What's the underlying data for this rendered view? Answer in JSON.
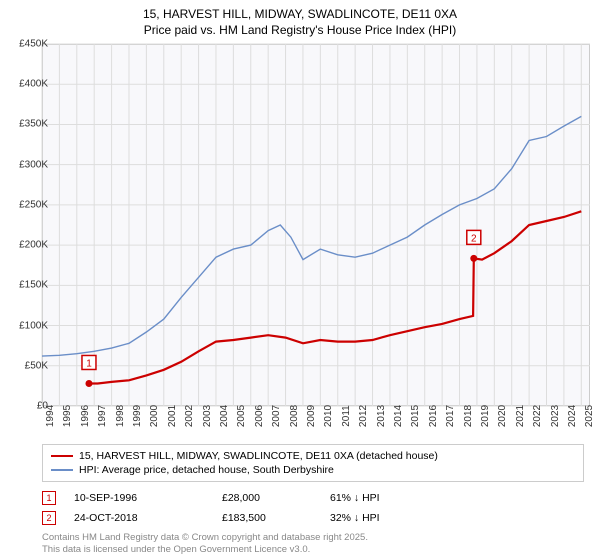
{
  "title_line1": "15, HARVEST HILL, MIDWAY, SWADLINCOTE, DE11 0XA",
  "title_line2": "Price paid vs. HM Land Registry's House Price Index (HPI)",
  "chart": {
    "type": "line",
    "background_color": "#f8f8fb",
    "grid_color": "#dddddd",
    "border_color": "#cccccc",
    "xlim": [
      1994,
      2025.5
    ],
    "ylim": [
      0,
      450000
    ],
    "ytick_step": 50000,
    "y_ticks": [
      "£0",
      "£50K",
      "£100K",
      "£150K",
      "£200K",
      "£250K",
      "£300K",
      "£350K",
      "£400K",
      "£450K"
    ],
    "x_ticks": [
      "1994",
      "1995",
      "1996",
      "1997",
      "1998",
      "1999",
      "2000",
      "2001",
      "2002",
      "2003",
      "2004",
      "2005",
      "2006",
      "2007",
      "2008",
      "2009",
      "2010",
      "2011",
      "2012",
      "2013",
      "2014",
      "2015",
      "2016",
      "2017",
      "2018",
      "2019",
      "2020",
      "2021",
      "2022",
      "2023",
      "2024",
      "2025"
    ],
    "label_fontsize": 10,
    "series": [
      {
        "name": "price_paid",
        "color": "#cc0000",
        "line_width": 2.2,
        "data": [
          [
            1996.7,
            28000
          ],
          [
            1997.2,
            28000
          ],
          [
            1998,
            30000
          ],
          [
            1999,
            32000
          ],
          [
            2000,
            38000
          ],
          [
            2001,
            45000
          ],
          [
            2002,
            55000
          ],
          [
            2003,
            68000
          ],
          [
            2004,
            80000
          ],
          [
            2005,
            82000
          ],
          [
            2006,
            85000
          ],
          [
            2007,
            88000
          ],
          [
            2008,
            85000
          ],
          [
            2009,
            78000
          ],
          [
            2010,
            82000
          ],
          [
            2011,
            80000
          ],
          [
            2012,
            80000
          ],
          [
            2013,
            82000
          ],
          [
            2014,
            88000
          ],
          [
            2015,
            93000
          ],
          [
            2016,
            98000
          ],
          [
            2017,
            102000
          ],
          [
            2018,
            108000
          ],
          [
            2018.78,
            112000
          ],
          [
            2018.82,
            183500
          ],
          [
            2019.3,
            182000
          ],
          [
            2020,
            190000
          ],
          [
            2021,
            205000
          ],
          [
            2022,
            225000
          ],
          [
            2023,
            230000
          ],
          [
            2024,
            235000
          ],
          [
            2025,
            242000
          ]
        ],
        "markers": [
          {
            "n": "1",
            "x": 1996.7,
            "y": 28000
          },
          {
            "n": "2",
            "x": 2018.82,
            "y": 183500
          }
        ]
      },
      {
        "name": "hpi",
        "color": "#6a8ec8",
        "line_width": 1.4,
        "data": [
          [
            1994,
            62000
          ],
          [
            1995,
            63000
          ],
          [
            1996,
            65000
          ],
          [
            1997,
            68000
          ],
          [
            1998,
            72000
          ],
          [
            1999,
            78000
          ],
          [
            2000,
            92000
          ],
          [
            2001,
            108000
          ],
          [
            2002,
            135000
          ],
          [
            2003,
            160000
          ],
          [
            2004,
            185000
          ],
          [
            2005,
            195000
          ],
          [
            2006,
            200000
          ],
          [
            2007,
            218000
          ],
          [
            2007.7,
            225000
          ],
          [
            2008.3,
            210000
          ],
          [
            2009,
            182000
          ],
          [
            2010,
            195000
          ],
          [
            2011,
            188000
          ],
          [
            2012,
            185000
          ],
          [
            2013,
            190000
          ],
          [
            2014,
            200000
          ],
          [
            2015,
            210000
          ],
          [
            2016,
            225000
          ],
          [
            2017,
            238000
          ],
          [
            2018,
            250000
          ],
          [
            2019,
            258000
          ],
          [
            2020,
            270000
          ],
          [
            2021,
            295000
          ],
          [
            2022,
            330000
          ],
          [
            2023,
            335000
          ],
          [
            2024,
            348000
          ],
          [
            2025,
            360000
          ]
        ]
      }
    ]
  },
  "legend": {
    "red": "15, HARVEST HILL, MIDWAY, SWADLINCOTE, DE11 0XA (detached house)",
    "blue": "HPI: Average price, detached house, South Derbyshire"
  },
  "transactions": [
    {
      "n": "1",
      "date": "10-SEP-1996",
      "price": "£28,000",
      "pct": "61% ↓ HPI"
    },
    {
      "n": "2",
      "date": "24-OCT-2018",
      "price": "£183,500",
      "pct": "32% ↓ HPI"
    }
  ],
  "credit_line1": "Contains HM Land Registry data © Crown copyright and database right 2025.",
  "credit_line2": "This data is licensed under the Open Government Licence v3.0."
}
